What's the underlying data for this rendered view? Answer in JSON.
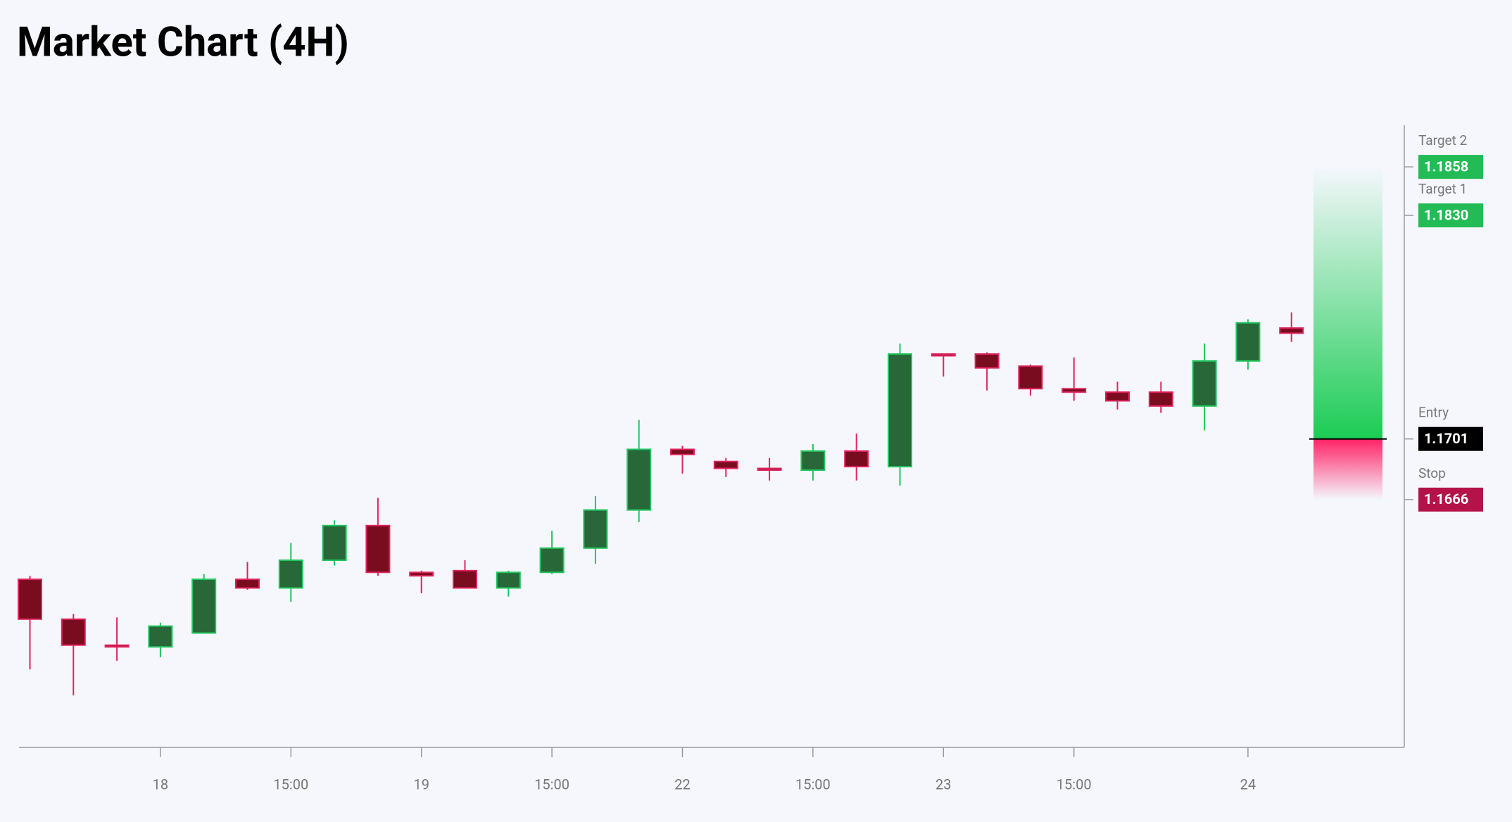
{
  "chart_data": {
    "type": "candlestick",
    "title": "Market Chart (4H)",
    "categories": [
      null,
      null,
      null,
      "18",
      null,
      null,
      "15:00",
      null,
      null,
      "19",
      null,
      null,
      "15:00",
      null,
      null,
      "22",
      null,
      null,
      "15:00",
      null,
      null,
      "23",
      null,
      null,
      "15:00",
      null,
      null,
      null,
      "24",
      null
    ],
    "open": [
      1.162,
      1.1597,
      1.1582,
      1.1581,
      1.1589,
      1.162,
      1.1615,
      1.1631,
      1.1651,
      1.1624,
      1.1625,
      1.1615,
      1.1624,
      1.1638,
      1.166,
      1.1695,
      1.1688,
      1.1684,
      1.1683,
      1.1694,
      1.1685,
      1.175,
      1.175,
      1.1743,
      1.173,
      1.1728,
      1.1728,
      1.172,
      1.1746,
      1.1765
    ],
    "high": [
      1.1622,
      1.16,
      1.1598,
      1.1595,
      1.1623,
      1.163,
      1.1641,
      1.1654,
      1.1667,
      1.1625,
      1.1631,
      1.1625,
      1.1648,
      1.1668,
      1.1712,
      1.1697,
      1.169,
      1.169,
      1.1698,
      1.1704,
      1.1756,
      1.175,
      1.1751,
      1.1744,
      1.1748,
      1.1734,
      1.1734,
      1.1756,
      1.177,
      1.1774
    ],
    "low": [
      1.1568,
      1.1553,
      1.1573,
      1.1575,
      1.1589,
      1.1614,
      1.1607,
      1.1628,
      1.1622,
      1.1612,
      1.1615,
      1.161,
      1.1623,
      1.1629,
      1.1653,
      1.1681,
      1.1679,
      1.1677,
      1.1677,
      1.1677,
      1.1674,
      1.1737,
      1.1729,
      1.1726,
      1.1723,
      1.1718,
      1.1716,
      1.1706,
      1.1741,
      1.1757
    ],
    "close": [
      1.1597,
      1.1582,
      1.1581,
      1.1593,
      1.162,
      1.1615,
      1.1631,
      1.1651,
      1.1624,
      1.1622,
      1.1615,
      1.1624,
      1.1638,
      1.166,
      1.1695,
      1.1692,
      1.1684,
      1.1683,
      1.1694,
      1.1685,
      1.175,
      1.1749,
      1.1742,
      1.173,
      1.1728,
      1.1723,
      1.172,
      1.1746,
      1.1768,
      1.1762
    ],
    "ylim": [
      1.1523,
      1.1882
    ],
    "up_color": "#22c55e",
    "up_fill": "#276738",
    "down_color": "#e0245e",
    "down_fill": "#7a0c1f",
    "levels": [
      {
        "name": "Target 2",
        "value": 1.1858,
        "label": "1.1858",
        "color": "#22bb55"
      },
      {
        "name": "Target 1",
        "value": 1.183,
        "label": "1.1830",
        "color": "#22bb55"
      },
      {
        "name": "Entry",
        "value": 1.1701,
        "label": "1.1701",
        "color": "#000000"
      },
      {
        "name": "Stop",
        "value": 1.1666,
        "label": "1.1666",
        "color": "#b5124a"
      }
    ]
  }
}
